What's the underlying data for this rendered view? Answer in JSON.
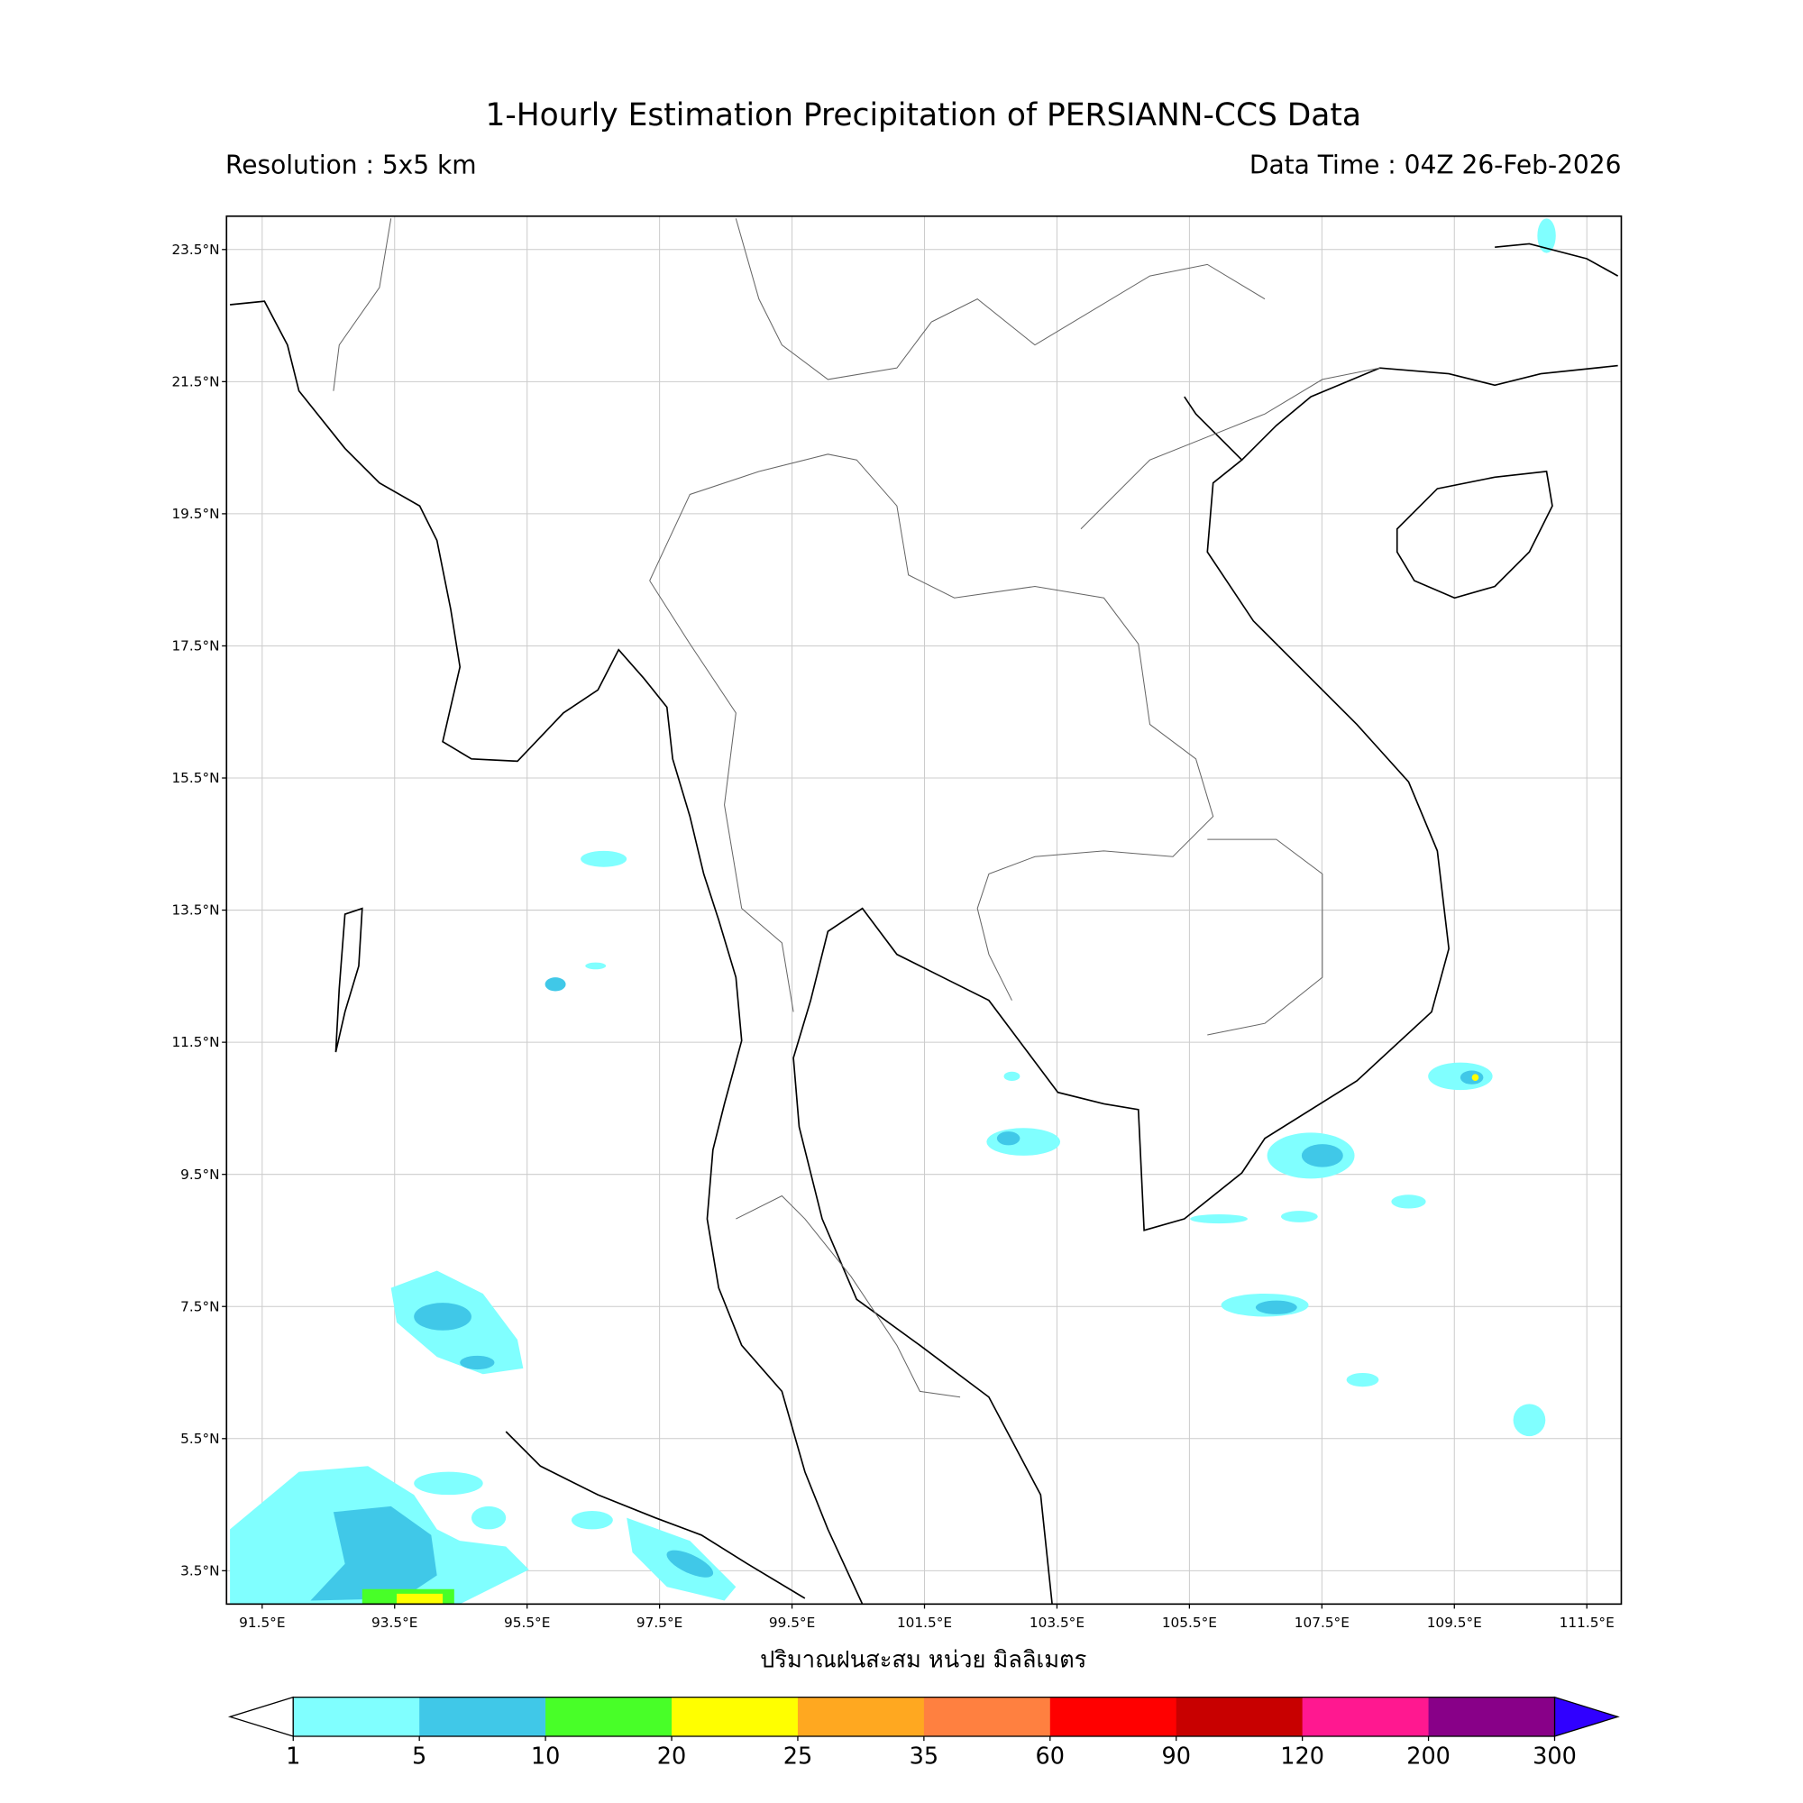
{
  "header": {
    "title": "1-Hourly Estimation Precipitation of PERSIANN-CCS Data",
    "resolution": "Resolution : 5x5 km",
    "data_time": "Data Time : 04Z 26-Feb-2026"
  },
  "map": {
    "lat_ticks": [
      "23.5°N",
      "21.5°N",
      "19.5°N",
      "17.5°N",
      "15.5°N",
      "13.5°N",
      "11.5°N",
      "9.5°N",
      "7.5°N",
      "5.5°N",
      "3.5°N"
    ],
    "lon_ticks": [
      "91.5°E",
      "93.5°E",
      "95.5°E",
      "97.5°E",
      "99.5°E",
      "101.5°E",
      "103.5°E",
      "105.5°E",
      "107.5°E",
      "109.5°E",
      "111.5°E"
    ],
    "xlabel": "ปริมาณฝนสะสม หน่วย มิลลิเมตร",
    "grid": true
  },
  "colorbar": {
    "levels": [
      "1",
      "5",
      "10",
      "20",
      "25",
      "35",
      "60",
      "90",
      "120",
      "200",
      "300"
    ],
    "colors": [
      "#80ffff",
      "#40c8e8",
      "#48ff28",
      "#ffff00",
      "#ffa820",
      "#ff8040",
      "#ff0000",
      "#c80000",
      "#ff1890",
      "#880088"
    ],
    "under_color": "#ffffff",
    "over_color": "#3000ff"
  }
}
